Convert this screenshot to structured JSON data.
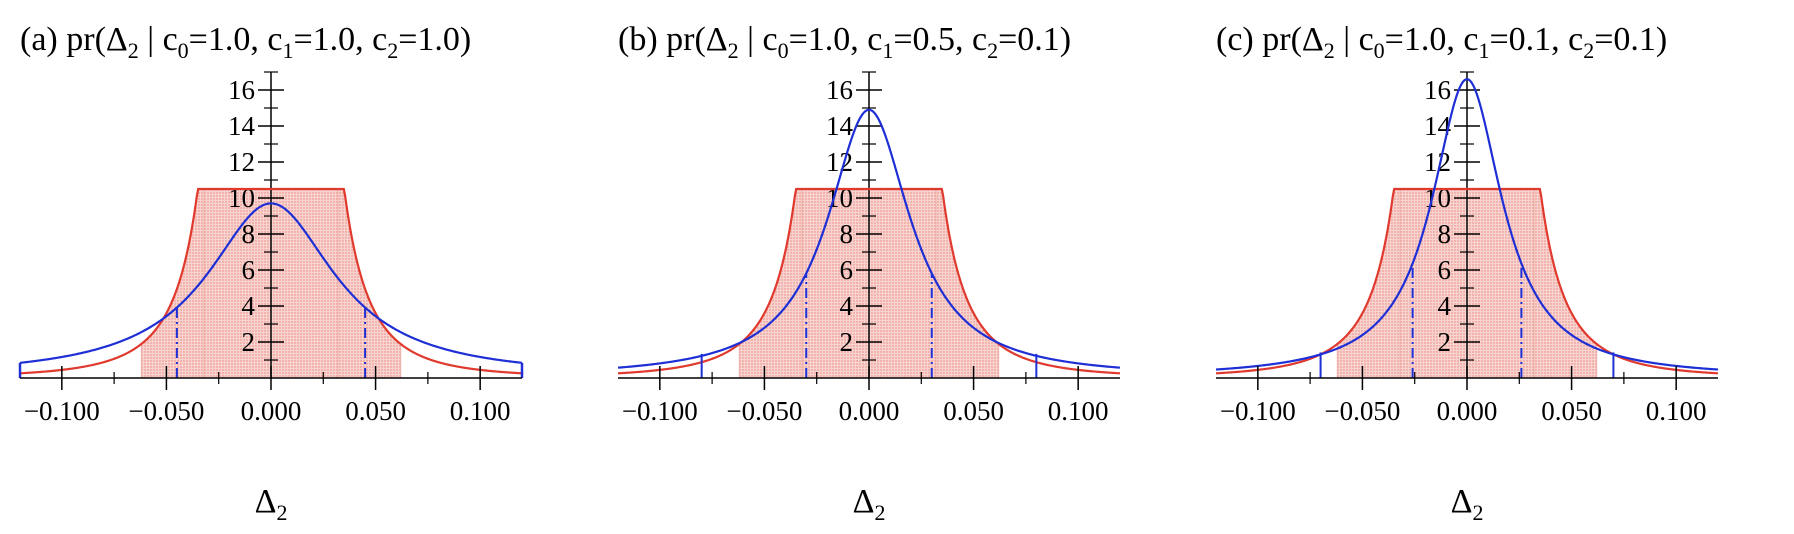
{
  "chart_data": [
    {
      "type": "line",
      "panel_label": "(a)",
      "title": {
        "prefix": "pr(Δ",
        "sub": "2",
        "mid": " | c",
        "c0sub": "0",
        "c0val": "=1.0, c",
        "c1sub": "1",
        "c1val": "=1.0, c",
        "c2sub": "2",
        "c2val": "=1.0)"
      },
      "params": {
        "c0": 1.0,
        "c1": 1.0,
        "c2": 1.0
      },
      "xlabel": {
        "main": "Δ",
        "sub": "2"
      },
      "xlim": [
        -0.12,
        0.12
      ],
      "ylim": [
        0,
        17
      ],
      "x_ticks": [
        -0.1,
        -0.05,
        0.0,
        0.05,
        0.1
      ],
      "x_tick_labels": [
        "−0.100",
        "−0.050",
        "0.000",
        "0.050",
        "0.100"
      ],
      "y_ticks": [
        2,
        4,
        6,
        8,
        10,
        12,
        14,
        16
      ],
      "y_tick_labels": [
        "2",
        "4",
        "6",
        "8",
        "10",
        "12",
        "14",
        "16"
      ],
      "series": [
        {
          "kind": "prior",
          "color": "#e03a2e",
          "plateau": 10.5,
          "plateau_half_width": 0.035,
          "shape": "quadratic-tail"
        },
        {
          "kind": "posterior",
          "color": "#1f2fd6",
          "peak": 9.7,
          "half_width": 0.037,
          "center": 0.0
        }
      ],
      "interval": {
        "color": "#1f2fd6",
        "style": "dash-dot",
        "bounds": [
          -0.045,
          0.045
        ]
      },
      "shaded_bands": [
        [
          -0.062,
          -0.032
        ],
        [
          -0.032,
          0.032
        ],
        [
          0.032,
          0.062
        ]
      ],
      "edge_markers": [
        -0.12,
        0.12
      ]
    },
    {
      "type": "line",
      "panel_label": "(b)",
      "title": {
        "prefix": "pr(Δ",
        "sub": "2",
        "mid": " | c",
        "c0sub": "0",
        "c0val": "=1.0, c",
        "c1sub": "1",
        "c1val": "=0.5, c",
        "c2sub": "2",
        "c2val": "=0.1)"
      },
      "params": {
        "c0": 1.0,
        "c1": 0.5,
        "c2": 0.1
      },
      "xlabel": {
        "main": "Δ",
        "sub": "2"
      },
      "xlim": [
        -0.12,
        0.12
      ],
      "ylim": [
        0,
        17
      ],
      "x_ticks": [
        -0.1,
        -0.05,
        0.0,
        0.05,
        0.1
      ],
      "x_tick_labels": [
        "−0.100",
        "−0.050",
        "0.000",
        "0.050",
        "0.100"
      ],
      "y_ticks": [
        2,
        4,
        6,
        8,
        10,
        12,
        14,
        16
      ],
      "y_tick_labels": [
        "2",
        "4",
        "6",
        "8",
        "10",
        "12",
        "14",
        "16"
      ],
      "series": [
        {
          "kind": "prior",
          "color": "#e03a2e",
          "plateau": 10.5,
          "plateau_half_width": 0.035,
          "shape": "quadratic-tail"
        },
        {
          "kind": "posterior",
          "color": "#1f2fd6",
          "peak": 14.9,
          "half_width": 0.024,
          "center": 0.0
        }
      ],
      "interval": {
        "color": "#1f2fd6",
        "style": "dash-dot",
        "bounds": [
          -0.03,
          0.03
        ]
      },
      "outer_interval": {
        "color": "#1f2fd6",
        "bounds": [
          -0.08,
          0.08
        ]
      },
      "shaded_bands": [
        [
          -0.062,
          -0.032
        ],
        [
          -0.032,
          0.032
        ],
        [
          0.032,
          0.062
        ]
      ]
    },
    {
      "type": "line",
      "panel_label": "(c)",
      "title": {
        "prefix": "pr(Δ",
        "sub": "2",
        "mid": " | c",
        "c0sub": "0",
        "c0val": "=1.0, c",
        "c1sub": "1",
        "c1val": "=0.1, c",
        "c2sub": "2",
        "c2val": "=0.1)"
      },
      "params": {
        "c0": 1.0,
        "c1": 0.1,
        "c2": 0.1
      },
      "xlabel": {
        "main": "Δ",
        "sub": "2"
      },
      "xlim": [
        -0.12,
        0.12
      ],
      "ylim": [
        0,
        17
      ],
      "x_ticks": [
        -0.1,
        -0.05,
        0.0,
        0.05,
        0.1
      ],
      "x_tick_labels": [
        "−0.100",
        "−0.050",
        "0.000",
        "0.050",
        "0.100"
      ],
      "y_ticks": [
        2,
        4,
        6,
        8,
        10,
        12,
        14,
        16
      ],
      "y_tick_labels": [
        "2",
        "4",
        "6",
        "8",
        "10",
        "12",
        "14",
        "16"
      ],
      "series": [
        {
          "kind": "prior",
          "color": "#e03a2e",
          "plateau": 10.5,
          "plateau_half_width": 0.035,
          "shape": "quadratic-tail"
        },
        {
          "kind": "posterior",
          "color": "#1f2fd6",
          "peak": 16.6,
          "half_width": 0.0205,
          "center": 0.0
        }
      ],
      "interval": {
        "color": "#1f2fd6",
        "style": "dash-dot",
        "bounds": [
          -0.026,
          0.026
        ]
      },
      "outer_interval": {
        "color": "#1f2fd6",
        "bounds": [
          -0.07,
          0.07
        ]
      },
      "shaded_bands": [
        [
          -0.062,
          -0.032
        ],
        [
          -0.032,
          0.032
        ],
        [
          0.032,
          0.062
        ]
      ]
    }
  ]
}
